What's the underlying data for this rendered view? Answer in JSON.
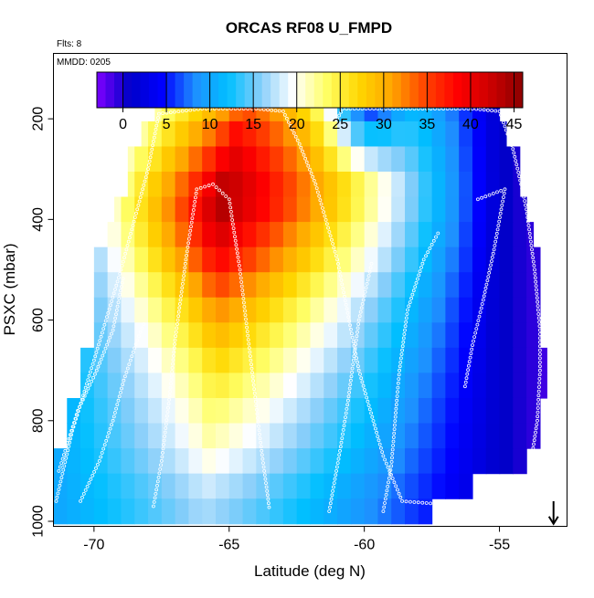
{
  "chart_data": {
    "type": "heatmap",
    "title": "ORCAS RF08 U_FMPD",
    "annotations": [
      "Flts: 8",
      "MMDD: 0205"
    ],
    "xlabel": "Latitude (deg N)",
    "ylabel": "PSXC (mbar)",
    "xlim": [
      -71.5,
      -52.5
    ],
    "ylim": [
      1010,
      70
    ],
    "x_ticks": [
      -70,
      -65,
      -60,
      -55
    ],
    "y_ticks": [
      200,
      400,
      600,
      800,
      1000
    ],
    "colorbar": {
      "range": [
        -3,
        46
      ],
      "ticks": [
        0,
        5,
        10,
        15,
        20,
        25,
        30,
        35,
        40,
        45
      ],
      "colors": [
        "#7f00ff",
        "#0000c8",
        "#0000ff",
        "#1e90ff",
        "#00bfff",
        "#87cefa",
        "#ffffff",
        "#ffff66",
        "#ffd700",
        "#ffa500",
        "#ff4500",
        "#ff0000",
        "#cd0000",
        "#8b0000"
      ]
    },
    "grid": {
      "pressure_levels": [
        180,
        230,
        280,
        330,
        380,
        430,
        480,
        530,
        580,
        630,
        680,
        730,
        780,
        830,
        880,
        930,
        980
      ],
      "latitude_columns": [
        -71.25,
        -70.75,
        -70.25,
        -69.75,
        -69.25,
        -68.75,
        -68.25,
        -67.75,
        -67.25,
        -66.75,
        -66.25,
        -65.75,
        -65.25,
        -64.75,
        -64.25,
        -63.75,
        -63.25,
        -62.75,
        -62.25,
        -61.75,
        -61.25,
        -60.75,
        -60.25,
        -59.75,
        -59.25,
        -58.75,
        -58.25,
        -57.75,
        -57.25,
        -56.75,
        -56.25,
        -55.75,
        -55.25,
        -54.75,
        -54.25,
        -53.75,
        -53.25
      ],
      "level_extent": [
        [
          -67.75,
          -55.0
        ],
        [
          -68.25,
          -54.75
        ],
        [
          -68.75,
          -54.25
        ],
        [
          -68.75,
          -54.25
        ],
        [
          -69.25,
          -54.0
        ],
        [
          -69.5,
          -53.75
        ],
        [
          -70.0,
          -53.5
        ],
        [
          -70.0,
          -53.5
        ],
        [
          -70.0,
          -53.5
        ],
        [
          -70.0,
          -53.5
        ],
        [
          -70.5,
          -53.25
        ],
        [
          -70.5,
          -53.25
        ],
        [
          -71.0,
          -53.5
        ],
        [
          -71.0,
          -53.5
        ],
        [
          -71.5,
          -54.0
        ],
        [
          -71.5,
          -56.0
        ],
        [
          -71.5,
          -57.5
        ]
      ]
    },
    "wind_field": {
      "jet_core": {
        "lat": -66.0,
        "pressure": 360,
        "value": 45
      },
      "peak_profile": [
        [
          180,
          35
        ],
        [
          260,
          40
        ],
        [
          360,
          45
        ],
        [
          460,
          40
        ],
        [
          560,
          33
        ],
        [
          660,
          28
        ],
        [
          760,
          24
        ],
        [
          860,
          21
        ],
        [
          960,
          17
        ]
      ],
      "jet_axis": [
        [
          180,
          -64.5
        ],
        [
          400,
          -65.5
        ],
        [
          700,
          -65.5
        ],
        [
          980,
          -66.0
        ]
      ],
      "weak_axis_lat": -55.0,
      "weak_value": 1,
      "upper_shear_zone": {
        "lat": -60.0,
        "pressure_top": 180,
        "pressure_bottom": 320,
        "drop": 13
      }
    },
    "flight_tracks": [
      [
        [
          -71.4,
          960
        ],
        [
          -70.8,
          820
        ],
        [
          -70.0,
          680
        ],
        [
          -69.0,
          500
        ],
        [
          -68.0,
          300
        ],
        [
          -67.6,
          190
        ],
        [
          -66.0,
          180
        ],
        [
          -64.0,
          180
        ],
        [
          -63.0,
          185
        ],
        [
          -62.4,
          250
        ],
        [
          -61.8,
          330
        ],
        [
          -61.0,
          480
        ],
        [
          -60.2,
          700
        ],
        [
          -59.3,
          870
        ],
        [
          -58.6,
          960
        ],
        [
          -57.4,
          965
        ]
      ],
      [
        [
          -71.3,
          900
        ],
        [
          -70.6,
          780
        ],
        [
          -69.9,
          700
        ],
        [
          -69.3,
          620
        ],
        [
          -68.9,
          510
        ]
      ],
      [
        [
          -70.5,
          960
        ],
        [
          -69.8,
          880
        ],
        [
          -69.3,
          800
        ],
        [
          -68.9,
          720
        ],
        [
          -68.4,
          640
        ],
        [
          -68.1,
          600
        ]
      ],
      [
        [
          -67.8,
          970
        ],
        [
          -67.5,
          880
        ],
        [
          -67.2,
          750
        ],
        [
          -67.0,
          640
        ],
        [
          -66.6,
          480
        ],
        [
          -66.2,
          340
        ],
        [
          -65.6,
          330
        ],
        [
          -65.0,
          360
        ],
        [
          -64.6,
          500
        ],
        [
          -64.2,
          680
        ],
        [
          -63.8,
          860
        ],
        [
          -63.5,
          980
        ]
      ],
      [
        [
          -61.0,
          200
        ],
        [
          -60.8,
          180
        ],
        [
          -59.5,
          180
        ],
        [
          -58.0,
          180
        ],
        [
          -56.0,
          180
        ],
        [
          -55.0,
          185
        ],
        [
          -54.5,
          260
        ],
        [
          -54.2,
          330
        ],
        [
          -54.0,
          380
        ],
        [
          -53.7,
          500
        ],
        [
          -53.5,
          620
        ],
        [
          -53.5,
          700
        ],
        [
          -53.6,
          800
        ],
        [
          -53.8,
          870
        ]
      ],
      [
        [
          -61.3,
          980
        ],
        [
          -60.9,
          860
        ],
        [
          -60.6,
          760
        ],
        [
          -60.4,
          680
        ],
        [
          -60.2,
          600
        ],
        [
          -59.7,
          480
        ]
      ],
      [
        [
          -59.3,
          980
        ],
        [
          -59.0,
          890
        ],
        [
          -58.8,
          760
        ],
        [
          -58.7,
          700
        ],
        [
          -58.4,
          580
        ],
        [
          -57.8,
          480
        ],
        [
          -57.2,
          420
        ]
      ],
      [
        [
          -55.8,
          360
        ],
        [
          -54.8,
          340
        ],
        [
          -55.2,
          460
        ],
        [
          -55.6,
          560
        ],
        [
          -56.0,
          650
        ],
        [
          -56.3,
          740
        ]
      ]
    ],
    "arrow": {
      "lat": -53.0,
      "pressure_top": 960,
      "pressure_bottom": 1005
    }
  }
}
